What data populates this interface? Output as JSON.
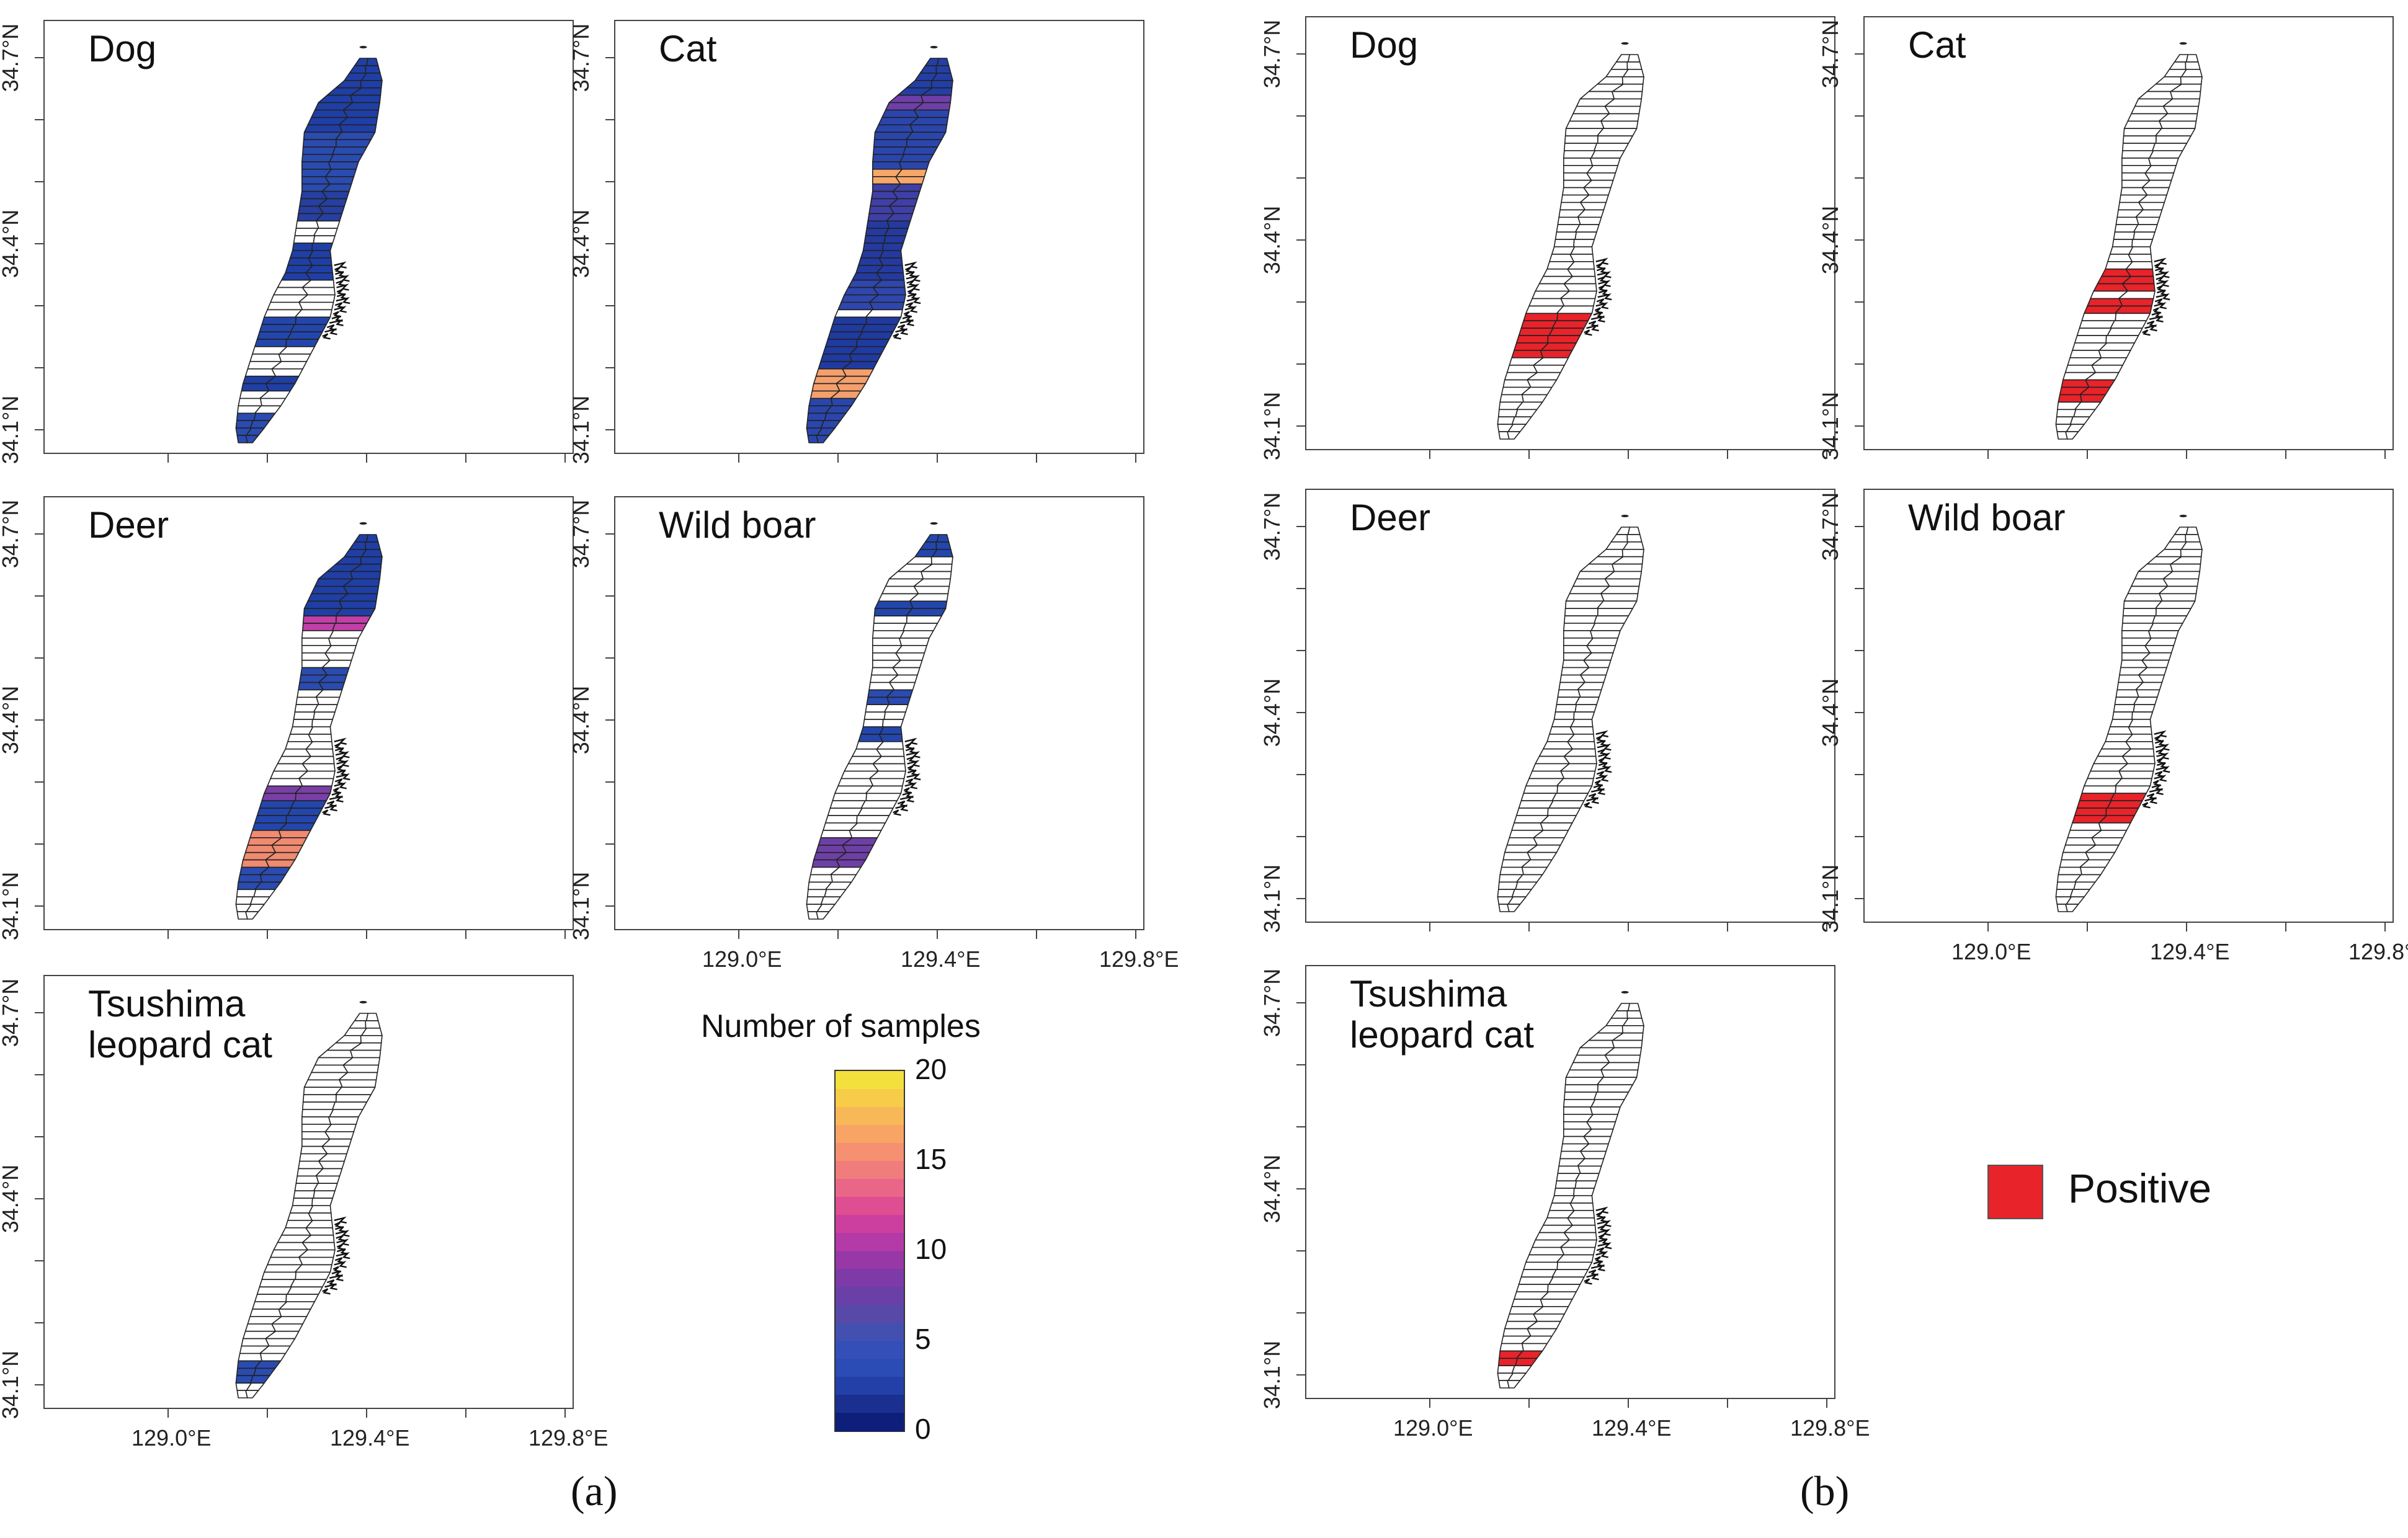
{
  "figure_a": {
    "label": "(a)",
    "panels": [
      {
        "key": "dog",
        "title": "Dog",
        "fills": [
          {
            "r": [
              0,
              20
            ],
            "c": "#1f3fa6"
          },
          {
            "r": [
              20,
              36
            ],
            "c": "#2a4bb0"
          },
          {
            "r": [
              36,
              44
            ],
            "c": "#263fa0"
          },
          {
            "r": [
              50,
              60
            ],
            "c": "#1f3fa6"
          },
          {
            "r": [
              70,
              78
            ],
            "c": "#2346ad"
          },
          {
            "r": [
              86,
              90
            ],
            "c": "#1f3fa6"
          },
          {
            "r": [
              96,
              104
            ],
            "c": "#2a4bb0"
          }
        ]
      },
      {
        "key": "cat",
        "title": "Cat",
        "fills": [
          {
            "r": [
              0,
              10
            ],
            "c": "#233fa6"
          },
          {
            "r": [
              10,
              14
            ],
            "c": "#6e3fa8"
          },
          {
            "r": [
              14,
              30
            ],
            "c": "#2a46ad"
          },
          {
            "r": [
              30,
              34
            ],
            "c": "#f6a86a"
          },
          {
            "r": [
              34,
              44
            ],
            "c": "#3f3fa8"
          },
          {
            "r": [
              44,
              60
            ],
            "c": "#243aa0"
          },
          {
            "r": [
              60,
              68
            ],
            "c": "#2f46ad"
          },
          {
            "r": [
              70,
              84
            ],
            "c": "#1f3aa0"
          },
          {
            "r": [
              84,
              92
            ],
            "c": "#f5a06c"
          },
          {
            "r": [
              92,
              104
            ],
            "c": "#2a46ad"
          }
        ]
      },
      {
        "key": "deer",
        "title": "Deer",
        "fills": [
          {
            "r": [
              0,
              22
            ],
            "c": "#1f3fa6"
          },
          {
            "r": [
              22,
              26
            ],
            "c": "#c13fa6"
          },
          {
            "r": [
              36,
              42
            ],
            "c": "#2a4bb0"
          },
          {
            "r": [
              68,
              72
            ],
            "c": "#7a3fa6"
          },
          {
            "r": [
              72,
              80
            ],
            "c": "#2346ad"
          },
          {
            "r": [
              80,
              90
            ],
            "c": "#f08a70"
          },
          {
            "r": [
              90,
              96
            ],
            "c": "#2a4bb0"
          }
        ]
      },
      {
        "key": "wild_boar",
        "title": "Wild boar",
        "fills": [
          {
            "r": [
              0,
              6
            ],
            "c": "#2346ad"
          },
          {
            "r": [
              18,
              22
            ],
            "c": "#2346ad"
          },
          {
            "r": [
              42,
              46
            ],
            "c": "#2a4bb0"
          },
          {
            "r": [
              52,
              56
            ],
            "c": "#2346ad"
          },
          {
            "r": [
              82,
              90
            ],
            "c": "#6e3fa6"
          }
        ]
      },
      {
        "key": "leopard_cat",
        "title": "Tsushima\nleopard cat",
        "fills": [
          {
            "r": [
              94,
              100
            ],
            "c": "#2a4bb0"
          }
        ]
      }
    ],
    "colorbar": {
      "title": "Number of samples",
      "ticks": [
        "20",
        "15",
        "10",
        "5",
        "0"
      ],
      "min": 0,
      "max": 20,
      "colors": [
        "#0d1f7a",
        "#1a2f90",
        "#2240a8",
        "#2a4cb4",
        "#3450b8",
        "#4450b0",
        "#5848a8",
        "#6a40a6",
        "#7e3aa6",
        "#9838a6",
        "#b43aa8",
        "#cc3f9e",
        "#de4e90",
        "#ea6688",
        "#f07c7c",
        "#f59070",
        "#f7a464",
        "#f7b857",
        "#f6cc48",
        "#f4e03c"
      ]
    }
  },
  "figure_b": {
    "label": "(b)",
    "panels": [
      {
        "key": "dog",
        "title": "Dog",
        "fills": [
          {
            "r": [
              70,
              76
            ],
            "c": "#e8232a"
          },
          {
            "r": [
              74,
              82
            ],
            "c": "#e8232a"
          }
        ]
      },
      {
        "key": "cat",
        "title": "Cat",
        "fills": [
          {
            "r": [
              58,
              64
            ],
            "c": "#e8232a"
          },
          {
            "r": [
              66,
              70
            ],
            "c": "#e8232a"
          },
          {
            "r": [
              88,
              94
            ],
            "c": "#e8232a"
          }
        ]
      },
      {
        "key": "deer",
        "title": "Deer",
        "fills": []
      },
      {
        "key": "wild_boar",
        "title": "Wild boar",
        "fills": [
          {
            "r": [
              72,
              80
            ],
            "c": "#e8232a"
          }
        ]
      },
      {
        "key": "leopard_cat",
        "title": "Tsushima\nleopard cat",
        "fills": [
          {
            "r": [
              94,
              98
            ],
            "c": "#e8232a"
          }
        ]
      }
    ],
    "legend": {
      "label": "Positive",
      "color": "#e8232a"
    }
  },
  "axes": {
    "y_ticks": [
      "34.7°N",
      "34.4°N",
      "34.1°N"
    ],
    "x_ticks": [
      "129.0°E",
      "129.4°E",
      "129.8°E"
    ]
  }
}
